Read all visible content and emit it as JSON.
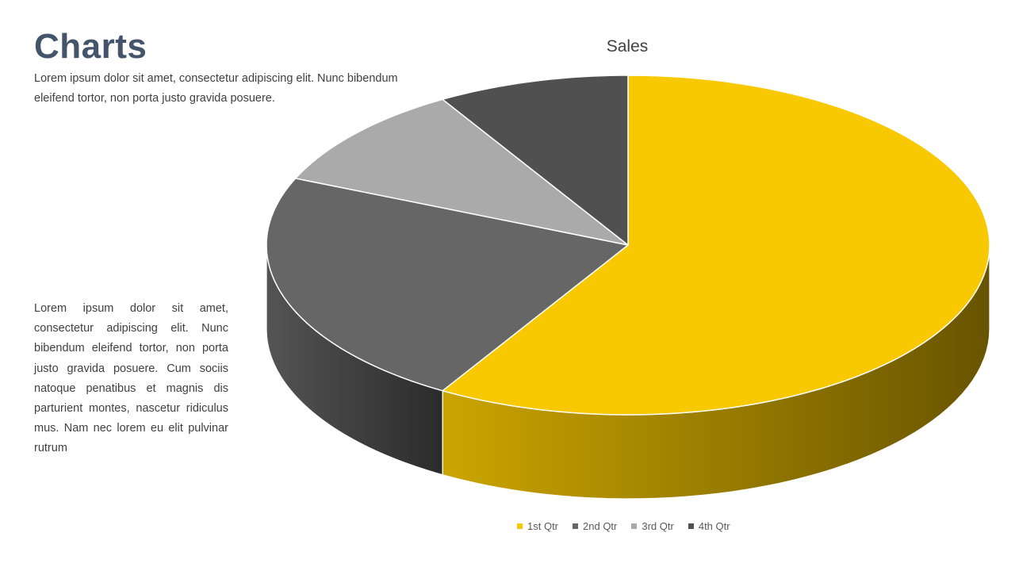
{
  "slide": {
    "title": "Charts",
    "subtitle": "Lorem ipsum dolor sit amet, consectetur adipiscing elit. Nunc bibendum eleifend tortor, non porta justo gravida posuere.",
    "body": "Lorem ipsum dolor sit amet, consectetur adipiscing elit. Nunc bibendum eleifend tortor, non porta justo gravida posuere. Cum sociis natoque penatibus et magnis dis parturient montes, nascetur ridiculus mus. Nam nec lorem eu elit pulvinar rutrum"
  },
  "chart_data": {
    "type": "pie",
    "title": "Sales",
    "three_d": true,
    "legend_position": "bottom",
    "categories": [
      "1st Qtr",
      "2nd Qtr",
      "3rd Qtr",
      "4th Qtr"
    ],
    "values": [
      8.2,
      3.2,
      1.4,
      1.2
    ],
    "colors": [
      "#f8c900",
      "#666666",
      "#aaaaaa",
      "#505050"
    ]
  }
}
